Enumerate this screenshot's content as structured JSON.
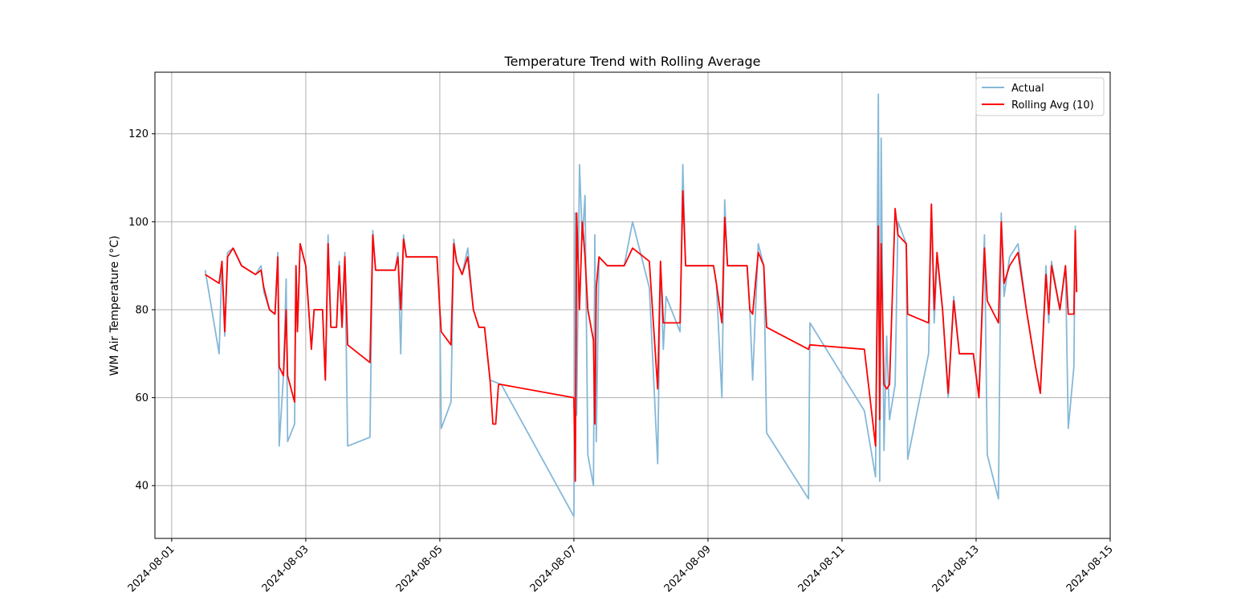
{
  "chart_data": {
    "type": "line",
    "title": "Temperature Trend with Rolling Average",
    "xlabel": "",
    "ylabel": "WM Air Temperature (°C)",
    "x_ticks": [
      "2024-08-01",
      "2024-08-03",
      "2024-08-05",
      "2024-08-07",
      "2024-08-09",
      "2024-08-11",
      "2024-08-13",
      "2024-08-15"
    ],
    "y_ticks": [
      40,
      60,
      80,
      100,
      120
    ],
    "xlim": [
      "2024-07-31 18:00",
      "2024-08-15 00:00"
    ],
    "ylim": [
      28,
      134
    ],
    "grid": true,
    "legend_position": "top-right",
    "series": [
      {
        "name": "Actual",
        "color": "#85b8d8",
        "points": [
          [
            "2024-08-01 12:00",
            89
          ],
          [
            "2024-08-01 17:00",
            70
          ],
          [
            "2024-08-01 18:00",
            91
          ],
          [
            "2024-08-01 19:00",
            74
          ],
          [
            "2024-08-01 20:00",
            93
          ],
          [
            "2024-08-01 22:00",
            94
          ],
          [
            "2024-08-02 01:00",
            90
          ],
          [
            "2024-08-02 06:00",
            88
          ],
          [
            "2024-08-02 08:00",
            90
          ],
          [
            "2024-08-02 09:00",
            84
          ],
          [
            "2024-08-02 11:00",
            80
          ],
          [
            "2024-08-02 13:00",
            79
          ],
          [
            "2024-08-02 14:00",
            93
          ],
          [
            "2024-08-02 14:30",
            49
          ],
          [
            "2024-08-02 16:00",
            65
          ],
          [
            "2024-08-02 17:00",
            87
          ],
          [
            "2024-08-02 17:30",
            50
          ],
          [
            "2024-08-02 20:00",
            54
          ],
          [
            "2024-08-02 20:30",
            90
          ],
          [
            "2024-08-02 21:00",
            75
          ],
          [
            "2024-08-02 22:00",
            95
          ],
          [
            "2024-08-03 00:00",
            90
          ],
          [
            "2024-08-03 02:00",
            71
          ],
          [
            "2024-08-03 03:00",
            80
          ],
          [
            "2024-08-03 06:00",
            80
          ],
          [
            "2024-08-03 07:00",
            64
          ],
          [
            "2024-08-03 08:00",
            97
          ],
          [
            "2024-08-03 09:00",
            76
          ],
          [
            "2024-08-03 11:00",
            76
          ],
          [
            "2024-08-03 12:00",
            91
          ],
          [
            "2024-08-03 13:00",
            76
          ],
          [
            "2024-08-03 14:00",
            93
          ],
          [
            "2024-08-03 15:00",
            49
          ],
          [
            "2024-08-03 23:00",
            51
          ],
          [
            "2024-08-04 00:00",
            98
          ],
          [
            "2024-08-04 01:00",
            89
          ],
          [
            "2024-08-04 08:00",
            89
          ],
          [
            "2024-08-04 09:00",
            93
          ],
          [
            "2024-08-04 10:00",
            70
          ],
          [
            "2024-08-04 11:00",
            97
          ],
          [
            "2024-08-04 12:00",
            92
          ],
          [
            "2024-08-04 23:00",
            92
          ],
          [
            "2024-08-05 00:00",
            80
          ],
          [
            "2024-08-05 00:30",
            53
          ],
          [
            "2024-08-05 04:00",
            59
          ],
          [
            "2024-08-05 05:00",
            96
          ],
          [
            "2024-08-05 06:00",
            91
          ],
          [
            "2024-08-05 08:00",
            88
          ],
          [
            "2024-08-05 10:00",
            94
          ],
          [
            "2024-08-05 12:00",
            80
          ],
          [
            "2024-08-05 14:00",
            76
          ],
          [
            "2024-08-05 16:00",
            76
          ],
          [
            "2024-08-05 18:00",
            64
          ],
          [
            "2024-08-05 22:00",
            63
          ],
          [
            "2024-08-07 00:00",
            33
          ],
          [
            "2024-08-07 00:30",
            102
          ],
          [
            "2024-08-07 01:00",
            56
          ],
          [
            "2024-08-07 02:00",
            113
          ],
          [
            "2024-08-07 03:00",
            96
          ],
          [
            "2024-08-07 04:00",
            106
          ],
          [
            "2024-08-07 05:00",
            47
          ],
          [
            "2024-08-07 07:00",
            40
          ],
          [
            "2024-08-07 07:30",
            97
          ],
          [
            "2024-08-07 08:00",
            50
          ],
          [
            "2024-08-07 09:00",
            92
          ],
          [
            "2024-08-07 12:00",
            90
          ],
          [
            "2024-08-07 18:00",
            90
          ],
          [
            "2024-08-07 21:00",
            100
          ],
          [
            "2024-08-08 03:00",
            85
          ],
          [
            "2024-08-08 06:00",
            45
          ],
          [
            "2024-08-08 07:00",
            91
          ],
          [
            "2024-08-08 08:00",
            71
          ],
          [
            "2024-08-08 09:00",
            83
          ],
          [
            "2024-08-08 14:00",
            75
          ],
          [
            "2024-08-08 15:00",
            113
          ],
          [
            "2024-08-08 16:00",
            90
          ],
          [
            "2024-08-09 02:00",
            90
          ],
          [
            "2024-08-09 03:00",
            86
          ],
          [
            "2024-08-09 05:00",
            60
          ],
          [
            "2024-08-09 06:00",
            105
          ],
          [
            "2024-08-09 07:00",
            90
          ],
          [
            "2024-08-09 14:00",
            90
          ],
          [
            "2024-08-09 15:00",
            80
          ],
          [
            "2024-08-09 16:00",
            64
          ],
          [
            "2024-08-09 18:00",
            95
          ],
          [
            "2024-08-09 20:00",
            90
          ],
          [
            "2024-08-09 21:00",
            52
          ],
          [
            "2024-08-10 12:00",
            37
          ],
          [
            "2024-08-10 12:30",
            77
          ],
          [
            "2024-08-11 08:00",
            57
          ],
          [
            "2024-08-11 12:00",
            42
          ],
          [
            "2024-08-11 13:00",
            129
          ],
          [
            "2024-08-11 13:30",
            41
          ],
          [
            "2024-08-11 14:00",
            119
          ],
          [
            "2024-08-11 15:00",
            48
          ],
          [
            "2024-08-11 16:00",
            74
          ],
          [
            "2024-08-11 17:00",
            55
          ],
          [
            "2024-08-11 19:00",
            63
          ],
          [
            "2024-08-11 20:00",
            100
          ],
          [
            "2024-08-11 23:00",
            95
          ],
          [
            "2024-08-11 23:30",
            46
          ],
          [
            "2024-08-12 07:00",
            70
          ],
          [
            "2024-08-12 08:00",
            104
          ],
          [
            "2024-08-12 09:00",
            77
          ],
          [
            "2024-08-12 10:00",
            92
          ],
          [
            "2024-08-12 12:00",
            80
          ],
          [
            "2024-08-12 14:00",
            60
          ],
          [
            "2024-08-12 16:00",
            83
          ],
          [
            "2024-08-12 18:00",
            70
          ],
          [
            "2024-08-12 23:00",
            70
          ],
          [
            "2024-08-13 01:00",
            60
          ],
          [
            "2024-08-13 03:00",
            97
          ],
          [
            "2024-08-13 04:00",
            47
          ],
          [
            "2024-08-13 08:00",
            37
          ],
          [
            "2024-08-13 09:00",
            102
          ],
          [
            "2024-08-13 10:00",
            83
          ],
          [
            "2024-08-13 12:00",
            92
          ],
          [
            "2024-08-13 15:00",
            95
          ],
          [
            "2024-08-13 18:00",
            80
          ],
          [
            "2024-08-13 21:00",
            68
          ],
          [
            "2024-08-13 23:00",
            61
          ],
          [
            "2024-08-14 01:00",
            90
          ],
          [
            "2024-08-14 02:00",
            77
          ],
          [
            "2024-08-14 03:00",
            91
          ],
          [
            "2024-08-14 06:00",
            80
          ],
          [
            "2024-08-14 08:00",
            90
          ],
          [
            "2024-08-14 09:00",
            53
          ],
          [
            "2024-08-14 11:00",
            67
          ],
          [
            "2024-08-14 11:30",
            99
          ],
          [
            "2024-08-14 12:00",
            84
          ]
        ]
      },
      {
        "name": "Rolling Avg (10)",
        "color": "#ff0000",
        "points": [
          [
            "2024-08-01 12:00",
            88
          ],
          [
            "2024-08-01 17:00",
            86
          ],
          [
            "2024-08-01 18:00",
            91
          ],
          [
            "2024-08-01 19:00",
            75
          ],
          [
            "2024-08-01 20:00",
            92
          ],
          [
            "2024-08-01 22:00",
            94
          ],
          [
            "2024-08-02 01:00",
            90
          ],
          [
            "2024-08-02 06:00",
            88
          ],
          [
            "2024-08-02 08:00",
            89
          ],
          [
            "2024-08-02 09:00",
            85
          ],
          [
            "2024-08-02 11:00",
            80
          ],
          [
            "2024-08-02 13:00",
            79
          ],
          [
            "2024-08-02 14:00",
            92
          ],
          [
            "2024-08-02 14:30",
            67
          ],
          [
            "2024-08-02 16:00",
            65
          ],
          [
            "2024-08-02 17:00",
            80
          ],
          [
            "2024-08-02 17:30",
            65
          ],
          [
            "2024-08-02 20:00",
            59
          ],
          [
            "2024-08-02 20:30",
            90
          ],
          [
            "2024-08-02 21:00",
            75
          ],
          [
            "2024-08-02 22:00",
            95
          ],
          [
            "2024-08-03 00:00",
            90
          ],
          [
            "2024-08-03 02:00",
            71
          ],
          [
            "2024-08-03 03:00",
            80
          ],
          [
            "2024-08-03 06:00",
            80
          ],
          [
            "2024-08-03 07:00",
            64
          ],
          [
            "2024-08-03 08:00",
            95
          ],
          [
            "2024-08-03 09:00",
            76
          ],
          [
            "2024-08-03 11:00",
            76
          ],
          [
            "2024-08-03 12:00",
            90
          ],
          [
            "2024-08-03 13:00",
            76
          ],
          [
            "2024-08-03 14:00",
            92
          ],
          [
            "2024-08-03 15:00",
            72
          ],
          [
            "2024-08-03 23:00",
            68
          ],
          [
            "2024-08-04 00:00",
            97
          ],
          [
            "2024-08-04 01:00",
            89
          ],
          [
            "2024-08-04 08:00",
            89
          ],
          [
            "2024-08-04 09:00",
            92
          ],
          [
            "2024-08-04 10:00",
            80
          ],
          [
            "2024-08-04 11:00",
            96
          ],
          [
            "2024-08-04 12:00",
            92
          ],
          [
            "2024-08-04 23:00",
            92
          ],
          [
            "2024-08-05 00:00",
            80
          ],
          [
            "2024-08-05 00:30",
            75
          ],
          [
            "2024-08-05 04:00",
            72
          ],
          [
            "2024-08-05 05:00",
            95
          ],
          [
            "2024-08-05 06:00",
            91
          ],
          [
            "2024-08-05 08:00",
            88
          ],
          [
            "2024-08-05 10:00",
            92
          ],
          [
            "2024-08-05 12:00",
            80
          ],
          [
            "2024-08-05 14:00",
            76
          ],
          [
            "2024-08-05 16:00",
            76
          ],
          [
            "2024-08-05 18:00",
            64
          ],
          [
            "2024-08-05 19:00",
            54
          ],
          [
            "2024-08-05 20:00",
            54
          ],
          [
            "2024-08-05 21:00",
            63
          ],
          [
            "2024-08-05 22:00",
            63
          ],
          [
            "2024-08-07 00:00",
            60
          ],
          [
            "2024-08-07 00:30",
            41
          ],
          [
            "2024-08-07 01:00",
            102
          ],
          [
            "2024-08-07 02:00",
            80
          ],
          [
            "2024-08-07 03:00",
            100
          ],
          [
            "2024-08-07 04:00",
            92
          ],
          [
            "2024-08-07 05:00",
            80
          ],
          [
            "2024-08-07 07:00",
            73
          ],
          [
            "2024-08-07 07:30",
            54
          ],
          [
            "2024-08-07 08:00",
            85
          ],
          [
            "2024-08-07 09:00",
            92
          ],
          [
            "2024-08-07 12:00",
            90
          ],
          [
            "2024-08-07 18:00",
            90
          ],
          [
            "2024-08-07 21:00",
            94
          ],
          [
            "2024-08-08 03:00",
            91
          ],
          [
            "2024-08-08 06:00",
            62
          ],
          [
            "2024-08-08 07:00",
            91
          ],
          [
            "2024-08-08 08:00",
            77
          ],
          [
            "2024-08-08 09:00",
            77
          ],
          [
            "2024-08-08 14:00",
            77
          ],
          [
            "2024-08-08 15:00",
            107
          ],
          [
            "2024-08-08 16:00",
            90
          ],
          [
            "2024-08-09 02:00",
            90
          ],
          [
            "2024-08-09 03:00",
            86
          ],
          [
            "2024-08-09 05:00",
            77
          ],
          [
            "2024-08-09 06:00",
            101
          ],
          [
            "2024-08-09 07:00",
            90
          ],
          [
            "2024-08-09 14:00",
            90
          ],
          [
            "2024-08-09 15:00",
            80
          ],
          [
            "2024-08-09 16:00",
            79
          ],
          [
            "2024-08-09 18:00",
            93
          ],
          [
            "2024-08-09 20:00",
            90
          ],
          [
            "2024-08-09 21:00",
            76
          ],
          [
            "2024-08-10 12:00",
            71
          ],
          [
            "2024-08-10 12:30",
            72
          ],
          [
            "2024-08-11 08:00",
            71
          ],
          [
            "2024-08-11 12:00",
            49
          ],
          [
            "2024-08-11 13:00",
            99
          ],
          [
            "2024-08-11 13:30",
            55
          ],
          [
            "2024-08-11 14:00",
            95
          ],
          [
            "2024-08-11 15:00",
            63
          ],
          [
            "2024-08-11 16:00",
            62
          ],
          [
            "2024-08-11 17:00",
            63
          ],
          [
            "2024-08-11 19:00",
            103
          ],
          [
            "2024-08-11 20:00",
            97
          ],
          [
            "2024-08-11 23:00",
            95
          ],
          [
            "2024-08-11 23:30",
            79
          ],
          [
            "2024-08-12 07:00",
            77
          ],
          [
            "2024-08-12 08:00",
            104
          ],
          [
            "2024-08-12 09:00",
            80
          ],
          [
            "2024-08-12 10:00",
            93
          ],
          [
            "2024-08-12 12:00",
            80
          ],
          [
            "2024-08-12 14:00",
            61
          ],
          [
            "2024-08-12 16:00",
            82
          ],
          [
            "2024-08-12 18:00",
            70
          ],
          [
            "2024-08-12 23:00",
            70
          ],
          [
            "2024-08-13 01:00",
            60
          ],
          [
            "2024-08-13 03:00",
            94
          ],
          [
            "2024-08-13 04:00",
            82
          ],
          [
            "2024-08-13 08:00",
            77
          ],
          [
            "2024-08-13 09:00",
            100
          ],
          [
            "2024-08-13 10:00",
            86
          ],
          [
            "2024-08-13 12:00",
            90
          ],
          [
            "2024-08-13 15:00",
            93
          ],
          [
            "2024-08-13 18:00",
            80
          ],
          [
            "2024-08-13 21:00",
            68
          ],
          [
            "2024-08-13 23:00",
            61
          ],
          [
            "2024-08-14 01:00",
            88
          ],
          [
            "2024-08-14 02:00",
            79
          ],
          [
            "2024-08-14 03:00",
            90
          ],
          [
            "2024-08-14 06:00",
            80
          ],
          [
            "2024-08-14 08:00",
            90
          ],
          [
            "2024-08-14 09:00",
            79
          ],
          [
            "2024-08-14 11:00",
            79
          ],
          [
            "2024-08-14 11:30",
            98
          ],
          [
            "2024-08-14 12:00",
            84
          ]
        ]
      }
    ]
  }
}
